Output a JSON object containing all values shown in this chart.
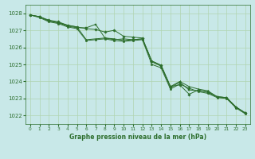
{
  "title": "Graphe pression niveau de la mer (hPa)",
  "background_color": "#c8e8e8",
  "grid_color": "#b0d4b0",
  "line_color": "#2d6e2d",
  "xlabel_bg": "#2d6e2d",
  "xlabel_fg": "#c8e8e8",
  "xlim": [
    -0.5,
    23.5
  ],
  "ylim": [
    1021.5,
    1028.5
  ],
  "yticks": [
    1022,
    1023,
    1024,
    1025,
    1026,
    1027,
    1028
  ],
  "xtick_labels": [
    "0",
    "1",
    "2",
    "3",
    "4",
    "5",
    "6",
    "7",
    "8",
    "9",
    "10",
    "11",
    "12",
    "13",
    "14",
    "15",
    "16",
    "17",
    "18",
    "19",
    "20",
    "21",
    "22",
    "23"
  ],
  "series": [
    [
      1027.9,
      1027.8,
      1027.6,
      1027.5,
      1027.3,
      1027.2,
      1027.1,
      1027.05,
      1026.9,
      1027.0,
      1026.65,
      1026.6,
      1026.55,
      1025.2,
      1024.95,
      1023.7,
      1023.8,
      1023.25,
      1023.5,
      1023.35,
      1023.1,
      1023.05,
      1022.5,
      1022.15
    ],
    [
      1027.9,
      1027.8,
      1027.55,
      1027.45,
      1027.3,
      1027.2,
      1026.45,
      1026.5,
      1026.55,
      1026.5,
      1026.4,
      1026.45,
      1026.5,
      1025.2,
      1024.95,
      1023.7,
      1024.0,
      1023.7,
      1023.55,
      1023.45,
      1023.1,
      1023.05,
      1022.5,
      1022.15
    ],
    [
      1027.9,
      1027.8,
      1027.55,
      1027.45,
      1027.25,
      1027.15,
      1027.15,
      1027.35,
      1026.55,
      1026.45,
      1026.5,
      1026.45,
      1026.5,
      1025.15,
      1024.9,
      1023.65,
      1023.95,
      1023.5,
      1023.45,
      1023.4,
      1023.1,
      1023.05,
      1022.5,
      1022.15
    ],
    [
      1027.9,
      1027.75,
      1027.5,
      1027.4,
      1027.2,
      1027.1,
      1026.4,
      1026.45,
      1026.5,
      1026.4,
      1026.35,
      1026.4,
      1026.45,
      1025.0,
      1024.8,
      1023.55,
      1023.85,
      1023.6,
      1023.4,
      1023.3,
      1023.05,
      1023.0,
      1022.45,
      1022.1
    ]
  ],
  "marker_every": [
    [
      0,
      1,
      2,
      3,
      4,
      5,
      6,
      7,
      8,
      9,
      10,
      11,
      12,
      13,
      14,
      15,
      16,
      17,
      18,
      19,
      20,
      21,
      22,
      23
    ],
    [
      0,
      1,
      2,
      3,
      4,
      5,
      6,
      7,
      8,
      9,
      10,
      11,
      12,
      13,
      14,
      15,
      16,
      17,
      18,
      19,
      20,
      21,
      22,
      23
    ],
    [
      0,
      1,
      2,
      3,
      4,
      5,
      6,
      7,
      8,
      9,
      10,
      11,
      12,
      13,
      14,
      15,
      16,
      17,
      18,
      19,
      20,
      21,
      22,
      23
    ],
    [
      0,
      1,
      2,
      3,
      4,
      5,
      6,
      7,
      8,
      9,
      10,
      11,
      12,
      13,
      14,
      15,
      16,
      17,
      18,
      19,
      20,
      21,
      22,
      23
    ]
  ]
}
